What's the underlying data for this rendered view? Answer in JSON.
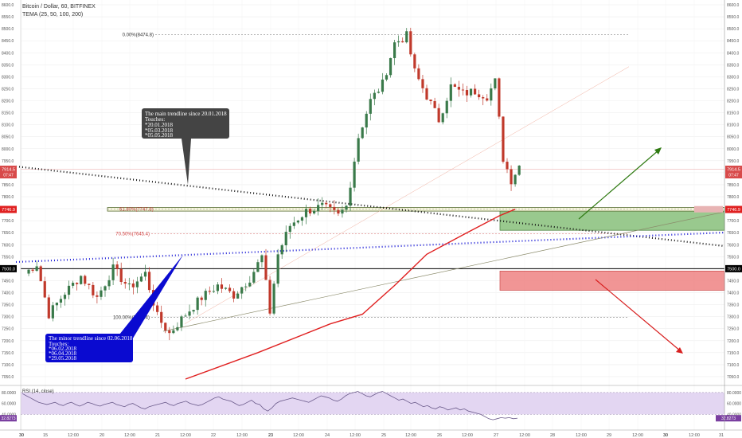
{
  "header": {
    "symbol_title": "Bitcoin / Dollar, 60, BITFINEX",
    "indicator": "TEMA (25, 50, 100, 200)"
  },
  "colors": {
    "up_candle": "#3a7a4a",
    "down_candle": "#c0392b",
    "main_trendline": "#111111",
    "minor_trendline": "#1a1ad6",
    "tema_line": "#e02020",
    "support_zone": "#8fc482",
    "resistance_zone": "#f08a8a",
    "rsi_band": "#e3d6f2",
    "rsi_line": "#6a5a8a",
    "bull_arrow": "#2f7a12",
    "bear_arrow": "#d82020",
    "note_dark": "#444444",
    "note_blue": "#0a0ad0"
  },
  "chart_data": {
    "type": "candlestick",
    "symbol": "BTCUSD",
    "exchange": "BITFINEX",
    "timeframe": "60",
    "ylim": [
      7020,
      8600
    ],
    "y_ticks": [
      "8600.0",
      "8550.0",
      "8500.0",
      "8450.0",
      "8400.0",
      "8350.0",
      "8300.0",
      "8250.0",
      "8200.0",
      "8150.0",
      "8100.0",
      "8050.0",
      "8000.0",
      "7950.0",
      "7900.0",
      "7850.0",
      "7800.0",
      "7750.0",
      "7700.0",
      "7650.0",
      "7600.0",
      "7550.0",
      "7500.0",
      "7450.0",
      "7400.0",
      "7350.0",
      "7300.0",
      "7250.0",
      "7200.0",
      "7150.0",
      "7100.0",
      "7050.0"
    ],
    "y_ticks_right": [
      "8600.0",
      "8550.0",
      "8500.0",
      "8450.0",
      "8400.0",
      "8350.0",
      "8300.0",
      "8250.0",
      "8200.0",
      "8150.0",
      "8100.0",
      "8050.0",
      "8000.0",
      "7950.0",
      "7900.0",
      "7850.0",
      "7800.0",
      "7700.0",
      "7650.0",
      "7600.0",
      "7550.0",
      "7450.0",
      "7400.0",
      "7350.0",
      "7300.0",
      "7250.0",
      "7200.0",
      "7150.0",
      "7100.0",
      "7050.0"
    ],
    "x_ticks": [
      "30",
      "15",
      "12:00",
      "20",
      "12:00",
      "21",
      "12:00",
      "22",
      "12:00",
      "23",
      "12:00",
      "24",
      "12:00",
      "25",
      "12:00",
      "26",
      "12:00",
      "27",
      "12:00",
      "28",
      "12:00",
      "29",
      "12:00",
      "30",
      "12:00",
      "31"
    ],
    "key_points": [
      {
        "t": 0,
        "price": 7480
      },
      {
        "t": 3,
        "price": 7520
      },
      {
        "t": 6,
        "price": 7310
      },
      {
        "t": 10,
        "price": 7400
      },
      {
        "t": 14,
        "price": 7470
      },
      {
        "t": 18,
        "price": 7380
      },
      {
        "t": 22,
        "price": 7500
      },
      {
        "t": 26,
        "price": 7420
      },
      {
        "t": 30,
        "price": 7480
      },
      {
        "t": 33,
        "price": 7300
      },
      {
        "t": 36,
        "price": 7230
      },
      {
        "t": 40,
        "price": 7310
      },
      {
        "t": 44,
        "price": 7380
      },
      {
        "t": 48,
        "price": 7430
      },
      {
        "t": 52,
        "price": 7390
      },
      {
        "t": 56,
        "price": 7460
      },
      {
        "t": 59,
        "price": 7550
      },
      {
        "t": 61,
        "price": 7320
      },
      {
        "t": 63,
        "price": 7560
      },
      {
        "t": 66,
        "price": 7680
      },
      {
        "t": 70,
        "price": 7740
      },
      {
        "t": 74,
        "price": 7760
      },
      {
        "t": 78,
        "price": 7720
      },
      {
        "t": 80,
        "price": 7760
      },
      {
        "t": 83,
        "price": 8050
      },
      {
        "t": 86,
        "price": 8200
      },
      {
        "t": 89,
        "price": 8270
      },
      {
        "t": 92,
        "price": 8440
      },
      {
        "t": 95,
        "price": 8470
      },
      {
        "t": 97,
        "price": 8320
      },
      {
        "t": 100,
        "price": 8220
      },
      {
        "t": 103,
        "price": 8120
      },
      {
        "t": 106,
        "price": 8260
      },
      {
        "t": 109,
        "price": 8230
      },
      {
        "t": 112,
        "price": 8240
      },
      {
        "t": 115,
        "price": 8220
      },
      {
        "t": 117,
        "price": 8280
      },
      {
        "t": 119,
        "price": 7960
      },
      {
        "t": 121,
        "price": 7870
      },
      {
        "t": 123,
        "price": 7930
      }
    ],
    "tema": [
      {
        "t": 40,
        "price": 7040
      },
      {
        "t": 58,
        "price": 7150
      },
      {
        "t": 76,
        "price": 7270
      },
      {
        "t": 84,
        "price": 7310
      },
      {
        "t": 92,
        "price": 7430
      },
      {
        "t": 100,
        "price": 7560
      },
      {
        "t": 110,
        "price": 7650
      },
      {
        "t": 118,
        "price": 7720
      },
      {
        "t": 122,
        "price": 7748
      }
    ],
    "rsi": {
      "label": "RSI (14, close)",
      "upper": 80,
      "lower": 40,
      "ticks": [
        "80.0000",
        "60.0000",
        "40.0000"
      ],
      "current": "32.8273",
      "values": [
        78,
        74,
        70,
        66,
        62,
        60,
        58,
        60,
        62,
        58,
        56,
        60,
        62,
        58,
        55,
        58,
        62,
        60,
        57,
        55,
        58,
        60,
        62,
        58,
        56,
        54,
        58,
        60,
        56,
        52,
        50,
        54,
        56,
        58,
        60,
        62,
        58,
        56,
        60,
        62,
        64,
        60,
        58,
        56,
        58,
        62,
        66,
        70,
        72,
        68,
        66,
        64,
        60,
        56,
        58,
        62,
        66,
        60,
        58,
        50,
        46,
        52,
        60,
        64,
        66,
        68,
        70,
        68,
        66,
        64,
        62,
        66,
        70,
        74,
        72,
        70,
        66,
        64,
        68,
        74,
        78,
        80,
        82,
        78,
        74,
        72,
        76,
        80,
        82,
        78,
        74,
        70,
        66,
        68,
        64,
        60,
        62,
        58,
        54,
        56,
        52,
        50,
        54,
        52,
        48,
        50,
        52,
        48,
        50,
        46,
        44,
        42,
        40,
        36,
        32,
        30,
        32,
        34,
        33,
        34,
        32,
        33
      ]
    },
    "levels": [
      {
        "label": "0.00%(8474.8)",
        "price": 8474.8
      },
      {
        "label": "61.80%(7747.8)",
        "price": 7747.8
      },
      {
        "label": "70.50%(7645.4)",
        "price": 7645.4
      },
      {
        "label": "100.00%(7297.4)",
        "price": 7297.4
      }
    ],
    "price_tags": [
      {
        "label": "7914.5",
        "sub": "07:47",
        "price": 7914.5,
        "color": "#d84a4a"
      },
      {
        "label": "7746.9",
        "price": 7746.9,
        "color": "#e02020"
      },
      {
        "label": "7500.0",
        "price": 7500.0,
        "color": "#000000"
      }
    ],
    "zones": [
      {
        "name": "support",
        "from_t": 118,
        "to_t": 175,
        "low": 7660,
        "high": 7750
      },
      {
        "name": "resistance",
        "from_t": 118,
        "to_t": 175,
        "low": 7410,
        "high": 7490
      }
    ]
  },
  "annotations": {
    "main_trendline_note": [
      "The main trendline since 20.01.2018",
      "Touches:",
      "*20.01.2018",
      "*05.03.2018",
      "*05.05.2018"
    ],
    "minor_trendline_note": [
      "The minor trendline since 02.06.2018",
      "Touches:",
      "*06.02.2018",
      "*06.04.2018",
      "*29.05.2018"
    ]
  }
}
